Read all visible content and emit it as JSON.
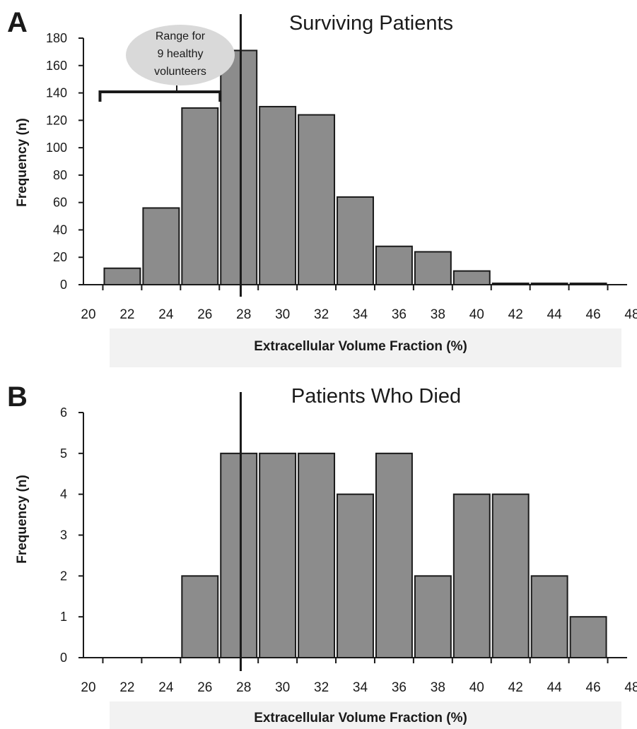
{
  "panels": [
    {
      "letter": "A"
    },
    {
      "letter": "B"
    }
  ],
  "colors": {
    "bar_fill": "#8c8c8c",
    "bar_stroke": "#1a1a1a",
    "axis": "#1a1a1a",
    "xlabel_band": "#f2f2f2",
    "annotation_fill": "#d9d9d9"
  },
  "chart_data": [
    {
      "type": "bar",
      "title": "Surviving Patients",
      "xlabel": "Extracellular Volume Fraction (%)",
      "ylabel": "Frequency (n)",
      "x_tick_labels": [
        "20",
        "22",
        "24",
        "26",
        "28",
        "30",
        "32",
        "34",
        "36",
        "38",
        "40",
        "42",
        "44",
        "46",
        "48"
      ],
      "x_range": [
        20,
        48
      ],
      "y_tick_labels": [
        "0",
        "20",
        "40",
        "60",
        "80",
        "100",
        "120",
        "140",
        "160",
        "180"
      ],
      "ylim": [
        0,
        180
      ],
      "bins": [
        [
          21,
          23
        ],
        [
          23,
          25
        ],
        [
          25,
          27
        ],
        [
          27,
          29
        ],
        [
          29,
          31
        ],
        [
          31,
          33
        ],
        [
          33,
          35
        ],
        [
          35,
          37
        ],
        [
          37,
          39
        ],
        [
          39,
          41
        ],
        [
          41,
          43
        ],
        [
          43,
          45
        ],
        [
          45,
          47
        ]
      ],
      "values": [
        12,
        56,
        129,
        171,
        130,
        124,
        64,
        28,
        24,
        10,
        1,
        1,
        1
      ],
      "reference_line_x": 28.1,
      "annotation": {
        "text": [
          "Range for",
          "9 healthy",
          "volunteers"
        ],
        "range": [
          21,
          27
        ]
      },
      "grid": false,
      "legend": "none"
    },
    {
      "type": "bar",
      "title": "Patients Who Died",
      "xlabel": "Extracellular Volume Fraction (%)",
      "ylabel": "Frequency (n)",
      "x_tick_labels": [
        "20",
        "22",
        "24",
        "26",
        "28",
        "30",
        "32",
        "34",
        "36",
        "38",
        "40",
        "42",
        "44",
        "46",
        "48"
      ],
      "x_range": [
        20,
        48
      ],
      "y_tick_labels": [
        "0",
        "1",
        "2",
        "3",
        "4",
        "5",
        "6"
      ],
      "ylim": [
        0,
        6
      ],
      "bins": [
        [
          25,
          27
        ],
        [
          27,
          29
        ],
        [
          29,
          31
        ],
        [
          31,
          33
        ],
        [
          33,
          35
        ],
        [
          35,
          37
        ],
        [
          37,
          39
        ],
        [
          39,
          41
        ],
        [
          41,
          43
        ],
        [
          43,
          45
        ],
        [
          45,
          47
        ]
      ],
      "values": [
        2,
        5,
        5,
        5,
        4,
        5,
        2,
        4,
        4,
        2,
        1
      ],
      "reference_line_x": 28.1,
      "grid": false,
      "legend": "none"
    }
  ]
}
